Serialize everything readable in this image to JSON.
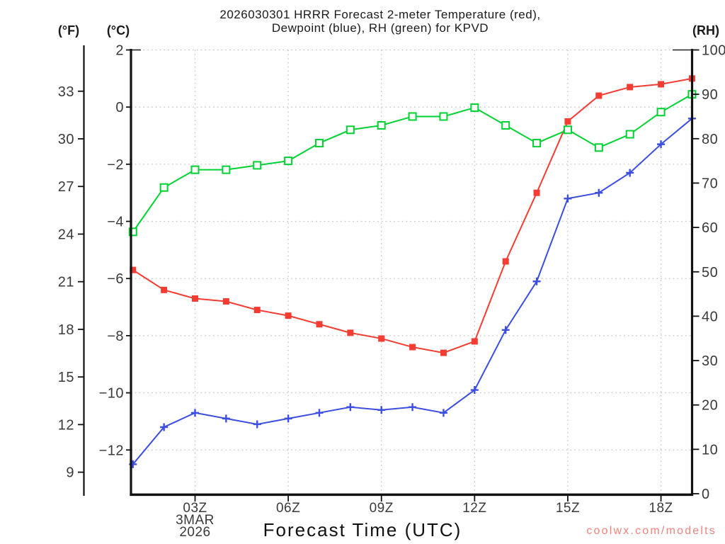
{
  "title": {
    "line1": "2026030301 HRRR Forecast 2-meter Temperature (red),",
    "line2": "Dewpoint (blue), RH (green) for KPVD"
  },
  "axis_headers": {
    "fahrenheit": "(°F)",
    "celsius": "(°C)",
    "rh": "(RH)"
  },
  "x_axis_title": "Forecast Time (UTC)",
  "watermark": {
    "text": "coolwx.com/modelts",
    "color": "#f4837d"
  },
  "chart_data": {
    "type": "line",
    "title": "2026030301 HRRR Forecast 2-meter Temperature (red), Dewpoint (blue), RH (green) for KPVD",
    "grid": "dotted",
    "x_hours_utc": [
      1,
      2,
      3,
      4,
      5,
      6,
      7,
      8,
      9,
      10,
      11,
      12,
      13,
      14,
      15,
      16,
      17,
      18,
      19
    ],
    "x_tick_labels": [
      {
        "hour": 3,
        "label": "03Z"
      },
      {
        "hour": 6,
        "label": "06Z"
      },
      {
        "hour": 9,
        "label": "09Z"
      },
      {
        "hour": 12,
        "label": "12Z"
      },
      {
        "hour": 15,
        "label": "15Z"
      },
      {
        "hour": 18,
        "label": "18Z"
      }
    ],
    "x_date_annotation": [
      "3MAR",
      "2026"
    ],
    "y_left_celsius_ticks": [
      2,
      0,
      -2,
      -4,
      -6,
      -8,
      -10,
      -12
    ],
    "y_left_fahrenheit_ticks": [
      33,
      30,
      27,
      24,
      21,
      18,
      15,
      12,
      9
    ],
    "y_right_rh_ticks": [
      100,
      90,
      80,
      70,
      60,
      50,
      40,
      30,
      20,
      10,
      0
    ],
    "celsius_axis_range": [
      -13.5,
      2
    ],
    "rh_axis_range": [
      0,
      100
    ],
    "series": [
      {
        "name": "2-meter Temperature",
        "unit": "°C",
        "color": "#f33d33",
        "marker": "filled-square",
        "values": [
          -5.7,
          -6.4,
          -6.7,
          -6.8,
          -7.1,
          -7.3,
          -7.6,
          -7.9,
          -8.1,
          -8.4,
          -8.6,
          -8.2,
          -5.4,
          -3.0,
          -0.5,
          0.4,
          0.7,
          0.8,
          1.0
        ]
      },
      {
        "name": "Dewpoint",
        "unit": "°C",
        "color": "#3c4ee2",
        "marker": "plus",
        "values": [
          -12.5,
          -11.2,
          -10.7,
          -10.9,
          -11.1,
          -10.9,
          -10.7,
          -10.5,
          -10.6,
          -10.5,
          -10.7,
          -9.9,
          -7.8,
          -6.1,
          -3.2,
          -3.0,
          -2.3,
          -1.3,
          -0.4
        ]
      },
      {
        "name": "RH",
        "unit": "%",
        "color": "#00d234",
        "marker": "open-square",
        "values": [
          59,
          69,
          73,
          73,
          74,
          75,
          79,
          82,
          83,
          85,
          85,
          87,
          83,
          79,
          82,
          78,
          81,
          86,
          90
        ]
      }
    ]
  }
}
